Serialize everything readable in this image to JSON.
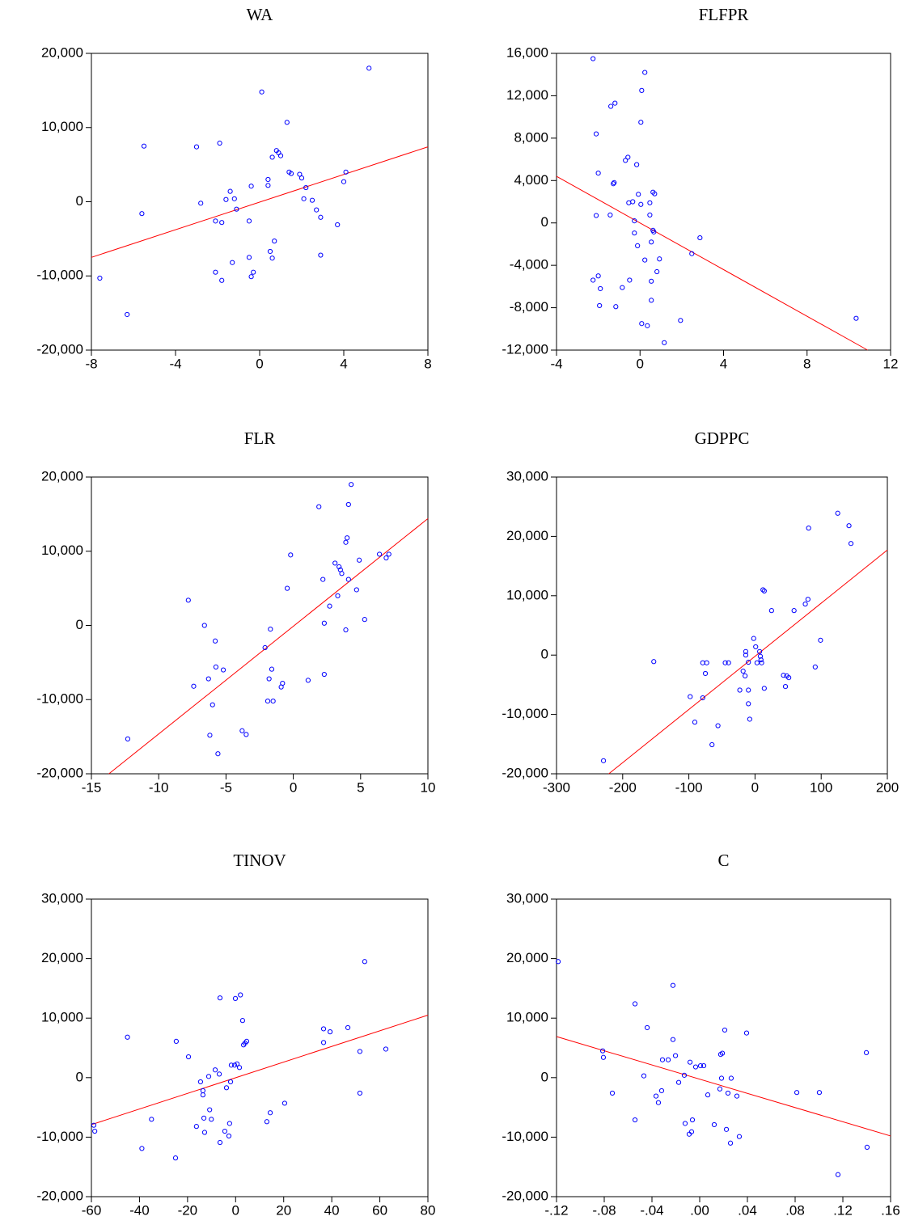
{
  "chart_data": [
    {
      "type": "scatter",
      "title": "WA",
      "x": [
        -7.6,
        -6.3,
        -5.5,
        -5.6,
        -3.0,
        -2.8,
        -1.9,
        -2.1,
        -1.8,
        -2.1,
        -1.8,
        -1.6,
        -1.4,
        -1.2,
        -1.1,
        -1.3,
        -0.5,
        -0.4,
        -0.5,
        -0.3,
        -0.4,
        0.1,
        0.4,
        0.4,
        0.6,
        0.5,
        0.7,
        0.6,
        0.8,
        0.9,
        1.0,
        1.3,
        1.4,
        1.5,
        1.9,
        2.0,
        2.2,
        2.1,
        2.5,
        2.7,
        2.9,
        2.9,
        3.7,
        4.0,
        4.1,
        5.2
      ],
      "y": [
        -10300,
        -15200,
        7500,
        -1600,
        7400,
        -200,
        7900,
        -2600,
        -2800,
        -9500,
        -10600,
        300,
        1400,
        400,
        -1000,
        -8200,
        -2600,
        2100,
        -7500,
        -9500,
        -10100,
        14800,
        3000,
        2200,
        6000,
        -6700,
        -5300,
        -7600,
        6900,
        6600,
        6200,
        10700,
        4000,
        3800,
        3700,
        3200,
        1900,
        400,
        200,
        -1100,
        -2100,
        -7200,
        -3100,
        2700,
        4000,
        18000
      ],
      "fit": {
        "x": [
          -8,
          8
        ],
        "y": [
          -7500,
          7400
        ]
      },
      "xlim": [
        -8,
        8
      ],
      "ylim": [
        -20000,
        20000
      ],
      "xticks": [
        -8,
        -4,
        0,
        4,
        8
      ],
      "yticks": [
        {
          "value": -20000,
          "label": "-20,000"
        },
        {
          "value": -10000,
          "label": "-10,000"
        },
        0,
        {
          "value": 10000,
          "label": "10,000"
        },
        {
          "value": 20000,
          "label": "20,000"
        }
      ],
      "point_color": "#0000ff",
      "fit_color": "#ff0000"
    },
    {
      "type": "scatter",
      "title": "FLFPR",
      "x": [
        -2.25,
        -2.1,
        -2.0,
        -2.1,
        -2.25,
        -2.0,
        -1.9,
        -1.94,
        -1.43,
        -1.4,
        -1.2,
        -1.28,
        -1.24,
        -1.16,
        -0.85,
        -0.7,
        -0.58,
        -0.5,
        -0.54,
        -0.35,
        -0.27,
        -0.27,
        -0.16,
        -0.08,
        -0.12,
        0.08,
        0.04,
        0.04,
        0.08,
        0.23,
        0.23,
        0.35,
        0.47,
        0.47,
        0.54,
        0.54,
        0.54,
        0.62,
        0.7,
        0.62,
        0.66,
        0.81,
        0.93,
        1.16,
        1.94,
        2.48,
        2.87,
        10.35
      ],
      "y": [
        15500,
        8400,
        4700,
        700,
        -5400,
        -5000,
        -6200,
        -7800,
        750,
        11000,
        11300,
        3700,
        3800,
        -7900,
        -6100,
        5900,
        6200,
        -5400,
        1900,
        2000,
        200,
        -950,
        5500,
        2700,
        -2150,
        12500,
        9500,
        1750,
        -9500,
        14200,
        -3500,
        -9700,
        1900,
        750,
        -1800,
        -5500,
        -7300,
        2900,
        2750,
        -700,
        -850,
        -4600,
        -3400,
        -11300,
        -9200,
        -2900,
        -1400,
        -9000
      ],
      "fit": {
        "x": [
          -4,
          10.9
        ],
        "y": [
          4400,
          -12000
        ]
      },
      "xlim": [
        -4,
        12
      ],
      "ylim": [
        -12000,
        16000
      ],
      "xticks": [
        -4,
        0,
        4,
        8,
        12
      ],
      "yticks": [
        {
          "value": -12000,
          "label": "-12,000"
        },
        {
          "value": -8000,
          "label": "-8,000"
        },
        {
          "value": -4000,
          "label": "-4,000"
        },
        0,
        {
          "value": 4000,
          "label": "4,000"
        },
        {
          "value": 8000,
          "label": "8,000"
        },
        {
          "value": 12000,
          "label": "12,000"
        },
        {
          "value": 16000,
          "label": "16,000"
        }
      ],
      "point_color": "#0000ff",
      "fit_color": "#ff0000"
    },
    {
      "type": "scatter",
      "title": "FLR",
      "x": [
        -12.3,
        -7.8,
        -7.4,
        -6.6,
        -6.3,
        -6.2,
        -6.0,
        -5.8,
        -5.75,
        -5.6,
        -5.2,
        -3.8,
        -3.5,
        -2.1,
        -1.9,
        -1.8,
        -1.7,
        -1.6,
        -1.5,
        -0.9,
        -0.8,
        -0.45,
        -0.2,
        1.1,
        1.9,
        2.2,
        2.3,
        2.3,
        2.7,
        3.1,
        3.3,
        3.4,
        3.5,
        3.6,
        3.9,
        3.9,
        4.0,
        4.1,
        4.1,
        4.3,
        4.7,
        4.9,
        5.3,
        6.4,
        6.9,
        7.1
      ],
      "y": [
        -15300,
        3400,
        -8200,
        0,
        -7200,
        -14800,
        -10700,
        -2100,
        -5600,
        -17300,
        -6000,
        -14200,
        -14700,
        -3000,
        -10200,
        -7200,
        -500,
        -5900,
        -10200,
        -8300,
        -7800,
        5000,
        9500,
        -7400,
        16000,
        6200,
        -6600,
        300,
        2600,
        8400,
        4000,
        7900,
        7500,
        7000,
        -600,
        11200,
        11800,
        16300,
        6200,
        19000,
        4800,
        8800,
        800,
        9600,
        9100,
        9600
      ],
      "fit": {
        "x": [
          -13.7,
          10
        ],
        "y": [
          -20000,
          14400
        ]
      },
      "xlim": [
        -15,
        10
      ],
      "ylim": [
        -20000,
        20000
      ],
      "xticks": [
        -15,
        -10,
        -5,
        0,
        5,
        10
      ],
      "yticks": [
        {
          "value": -20000,
          "label": "-20,000"
        },
        {
          "value": -10000,
          "label": "-10,000"
        },
        0,
        {
          "value": 10000,
          "label": "10,000"
        },
        {
          "value": 20000,
          "label": "20,000"
        }
      ],
      "point_color": "#0000ff",
      "fit_color": "#ff0000"
    },
    {
      "type": "scatter",
      "title": "GDPPC",
      "x": [
        -229,
        -153,
        -98,
        -91,
        -79,
        -73,
        -79,
        -75,
        -65,
        -56,
        -45,
        -40,
        -23,
        -18,
        -15,
        -14,
        -14,
        -10,
        -10,
        -10,
        -8,
        -2,
        1,
        3,
        7,
        8,
        9,
        10,
        12,
        14,
        14,
        25,
        43,
        46,
        48,
        51,
        59,
        76,
        80,
        81,
        91,
        99,
        125,
        142,
        145
      ],
      "y": [
        -17800,
        -1100,
        -7000,
        -11300,
        -1300,
        -1300,
        -7200,
        -3100,
        -15100,
        -11900,
        -1300,
        -1300,
        -5900,
        -2700,
        -3500,
        600,
        0,
        -1200,
        -5900,
        -8200,
        -10800,
        2800,
        1400,
        -1300,
        600,
        -200,
        -800,
        -1300,
        11000,
        10800,
        -5600,
        7500,
        -3400,
        -5300,
        -3500,
        -3800,
        7500,
        8600,
        9400,
        21400,
        -2000,
        2500,
        23900,
        21800,
        18800
      ],
      "fit": {
        "x": [
          -221,
          200
        ],
        "y": [
          -20000,
          17700
        ]
      },
      "xlim": [
        -300,
        200
      ],
      "ylim": [
        -20000,
        30000
      ],
      "xticks": [
        -300,
        -200,
        -100,
        0,
        100,
        200
      ],
      "yticks": [
        {
          "value": -20000,
          "label": "-20,000"
        },
        {
          "value": -10000,
          "label": "-10,000"
        },
        0,
        {
          "value": 10000,
          "label": "10,000"
        },
        {
          "value": 20000,
          "label": "20,000"
        },
        {
          "value": 30000,
          "label": "30,000"
        }
      ],
      "point_color": "#0000ff",
      "fit_color": "#ff0000"
    },
    {
      "type": "scatter",
      "title": "TINOV",
      "x": [
        -59,
        -58.6,
        -45,
        -39,
        -35,
        -25,
        -24.7,
        -19.6,
        -16.3,
        -14.6,
        -13.6,
        -13.6,
        -13.2,
        -12.9,
        -11.2,
        -10.8,
        -10.1,
        -8.5,
        -6.8,
        -6.5,
        -6.5,
        -4.5,
        -3.8,
        -2.8,
        -2.5,
        -2.1,
        -1.8,
        -0.4,
        -0.1,
        0.6,
        1.6,
        2.0,
        2.9,
        3.3,
        3.9,
        4.6,
        13,
        14.4,
        20.4,
        36.6,
        36.6,
        39.3,
        46.7,
        51.7,
        51.7,
        53.7,
        62.5
      ],
      "y": [
        -8000,
        -9000,
        6800,
        -11900,
        -7000,
        -13500,
        6100,
        3500,
        -8200,
        -700,
        -2200,
        -2900,
        -6800,
        -9200,
        200,
        -5400,
        -7000,
        1300,
        600,
        -10900,
        13400,
        -9000,
        -1700,
        -9800,
        -7700,
        -700,
        2100,
        2100,
        13300,
        2300,
        1700,
        13900,
        9600,
        5500,
        5800,
        6100,
        -7400,
        -5900,
        -4300,
        8200,
        5900,
        7700,
        8400,
        4400,
        -2600,
        19500,
        4800
      ],
      "fit": {
        "x": [
          -60,
          80
        ],
        "y": [
          -7900,
          10500
        ]
      },
      "xlim": [
        -60,
        80
      ],
      "ylim": [
        -20000,
        30000
      ],
      "xticks": [
        -60,
        -40,
        -20,
        0,
        20,
        40,
        60,
        80
      ],
      "yticks": [
        {
          "value": -20000,
          "label": "-20,000"
        },
        {
          "value": -10000,
          "label": "-10,000"
        },
        0,
        {
          "value": 10000,
          "label": "10,000"
        },
        {
          "value": 20000,
          "label": "20,000"
        },
        {
          "value": 30000,
          "label": "30,000"
        }
      ],
      "point_color": "#0000ff",
      "fit_color": "#ff0000"
    },
    {
      "type": "scatter",
      "title": "C",
      "x": [
        -0.1186,
        -0.0813,
        -0.0807,
        -0.0732,
        -0.0542,
        -0.0542,
        -0.0468,
        -0.044,
        -0.0366,
        -0.0346,
        -0.0319,
        -0.0312,
        -0.0264,
        -0.0224,
        -0.0224,
        -0.0203,
        -0.0176,
        -0.0129,
        -0.0122,
        -0.0088,
        -0.0081,
        -0.0068,
        -0.0061,
        -0.0034,
        0.0007,
        0.0034,
        0.0068,
        0.0122,
        0.0169,
        0.0176,
        0.0183,
        0.019,
        0.021,
        0.0224,
        0.0237,
        0.0258,
        0.0264,
        0.0312,
        0.0332,
        0.0393,
        0.0814,
        0.1003,
        0.1159,
        0.1397,
        0.1403
      ],
      "y": [
        19500,
        4500,
        3400,
        -2600,
        12400,
        -7100,
        300,
        8400,
        -3100,
        -4200,
        -2200,
        3000,
        3000,
        15500,
        6400,
        3700,
        -800,
        400,
        -7700,
        -9500,
        2600,
        -9100,
        -7100,
        1800,
        2000,
        2000,
        -2900,
        -7900,
        -1900,
        3900,
        -100,
        4100,
        8000,
        -8700,
        -2600,
        -11000,
        -100,
        -3100,
        -9900,
        7500,
        -2500,
        -2500,
        -16300,
        4200,
        -11700
      ],
      "fit": {
        "x": [
          -0.12,
          0.16
        ],
        "y": [
          6900,
          -9800
        ]
      },
      "xlim": [
        -0.12,
        0.16
      ],
      "ylim": [
        -20000,
        30000
      ],
      "xticks": [
        {
          "value": -0.12,
          "label": "-.12"
        },
        {
          "value": -0.08,
          "label": "-.08"
        },
        {
          "value": -0.04,
          "label": "-.04"
        },
        {
          "value": 0,
          "label": ".00"
        },
        {
          "value": 0.04,
          "label": ".04"
        },
        {
          "value": 0.08,
          "label": ".08"
        },
        {
          "value": 0.12,
          "label": ".12"
        },
        {
          "value": 0.16,
          "label": ".16"
        }
      ],
      "yticks": [
        {
          "value": -20000,
          "label": "-20,000"
        },
        {
          "value": -10000,
          "label": "-10,000"
        },
        0,
        {
          "value": 10000,
          "label": "10,000"
        },
        {
          "value": 20000,
          "label": "20,000"
        },
        {
          "value": 30000,
          "label": "30,000"
        }
      ],
      "point_color": "#0000ff",
      "fit_color": "#ff0000"
    }
  ]
}
